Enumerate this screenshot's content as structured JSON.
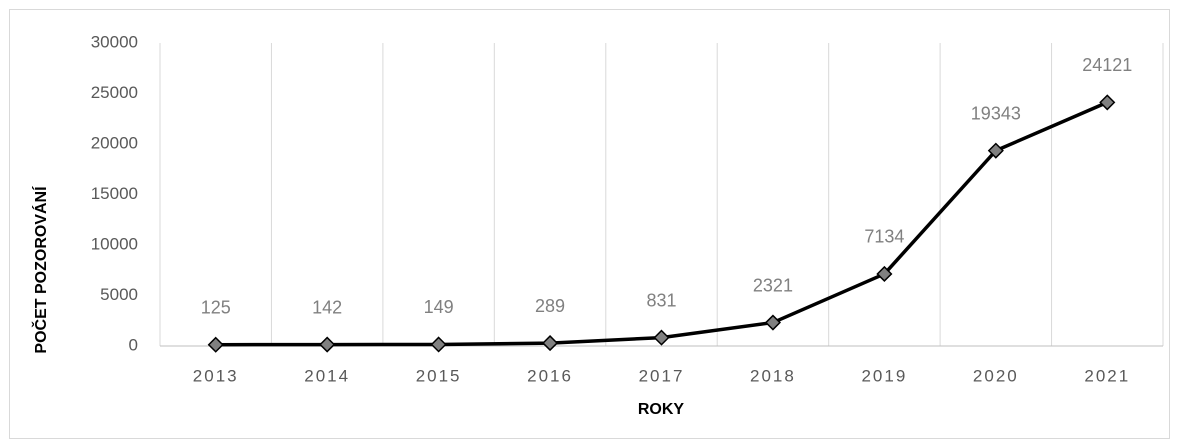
{
  "chart_data": {
    "type": "line",
    "x_label": "ROKY",
    "y_label": "POČET POZOROVÁNÍ",
    "categories": [
      "2013",
      "2014",
      "2015",
      "2016",
      "2017",
      "2018",
      "2019",
      "2020",
      "2021"
    ],
    "series": [
      {
        "color": "#000000",
        "marker_color": "#808080",
        "values": [
          125,
          142,
          149,
          289,
          831,
          2321,
          7134,
          19343,
          24121
        ]
      }
    ],
    "ylim": [
      0,
      30000
    ],
    "yticks": [
      0,
      5000,
      10000,
      15000,
      20000,
      25000,
      30000
    ],
    "grid": "x",
    "data_labels": true
  }
}
